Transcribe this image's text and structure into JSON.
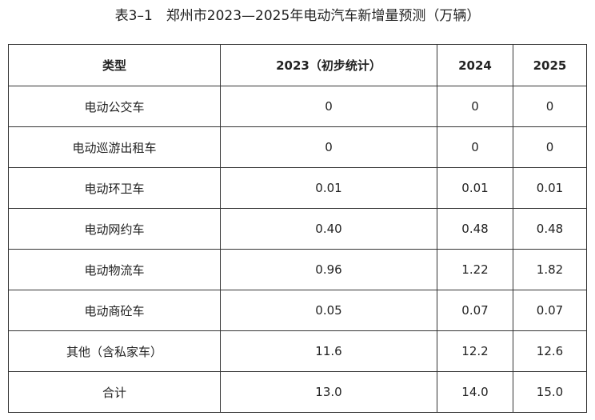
{
  "caption": "表3–1　郑州市2023—2025年电动汽车新增量预测（万辆）",
  "table": {
    "headers": [
      "类型",
      "2023（初步统计）",
      "2024",
      "2025"
    ],
    "rows": [
      [
        "电动公交车",
        "0",
        "0",
        "0"
      ],
      [
        "电动巡游出租车",
        "0",
        "0",
        "0"
      ],
      [
        "电动环卫车",
        "0.01",
        "0.01",
        "0.01"
      ],
      [
        "电动网约车",
        "0.40",
        "0.48",
        "0.48"
      ],
      [
        "电动物流车",
        "0.96",
        "1.22",
        "1.82"
      ],
      [
        "电动商砼车",
        "0.05",
        "0.07",
        "0.07"
      ],
      [
        "其他（含私家车）",
        "11.6",
        "12.2",
        "12.6"
      ],
      [
        "合计",
        "13.0",
        "14.0",
        "15.0"
      ]
    ]
  }
}
